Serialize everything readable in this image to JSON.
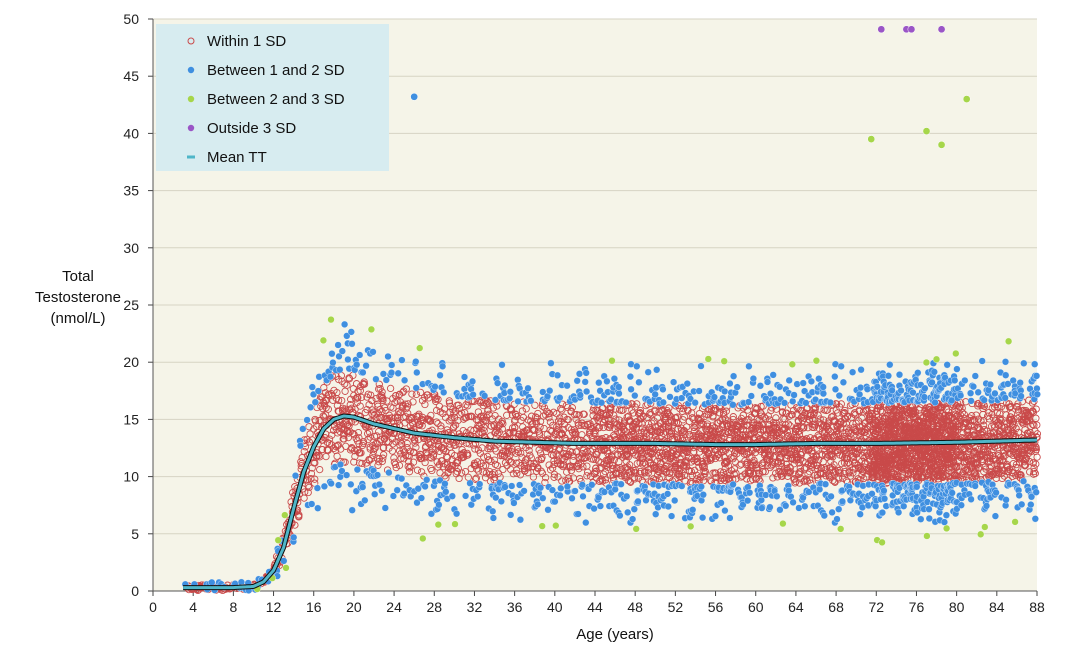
{
  "chart_data": {
    "type": "scatter",
    "title": "",
    "xlabel": "Age (years)",
    "ylabel_lines": [
      "Total",
      "Testosterone",
      "(nmol/L)"
    ],
    "xlim": [
      0,
      88
    ],
    "ylim": [
      0,
      50
    ],
    "x_ticks": [
      "0",
      "4",
      "8",
      "12",
      "16",
      "20",
      "24",
      "28",
      "32",
      "36",
      "40",
      "44",
      "48",
      "52",
      "56",
      "60",
      "64",
      "68",
      "72",
      "76",
      "80",
      "84",
      "88"
    ],
    "y_ticks": [
      "0",
      "5",
      "10",
      "15",
      "20",
      "25",
      "30",
      "35",
      "40",
      "45",
      "50"
    ],
    "grid": "horizontal",
    "legend_position": "top-left",
    "series": [
      {
        "name": "Within 1 SD",
        "marker": "open-circle",
        "color": "#c94a4a"
      },
      {
        "name": "Between 1 and 2 SD",
        "marker": "filled-circle",
        "color": "#3f8fe0"
      },
      {
        "name": "Between 2 and 3 SD",
        "marker": "filled-circle",
        "color": "#a6d64a"
      },
      {
        "name": "Outside 3 SD",
        "marker": "filled-circle",
        "color": "#9a55c6"
      },
      {
        "name": "Mean TT",
        "marker": "line",
        "color": "#4fb6c8"
      }
    ],
    "mean_tt": {
      "x": [
        3,
        4,
        6,
        8,
        10,
        11,
        12,
        13,
        14,
        15,
        16,
        17,
        18,
        19,
        20,
        22,
        24,
        26,
        28,
        30,
        34,
        38,
        42,
        46,
        50,
        56,
        60,
        66,
        72,
        80,
        88
      ],
      "y": [
        0.3,
        0.3,
        0.3,
        0.3,
        0.4,
        0.8,
        1.8,
        3.8,
        7.2,
        10.4,
        12.6,
        14.2,
        15.0,
        15.3,
        15.2,
        14.6,
        14.2,
        13.8,
        13.6,
        13.4,
        13.1,
        13.0,
        12.9,
        12.9,
        12.9,
        12.8,
        12.8,
        12.9,
        12.9,
        13.0,
        13.2
      ]
    },
    "outliers_highlighted": [
      {
        "x": 26,
        "y": 43.2,
        "series": "Between 1 and 2 SD"
      },
      {
        "x": 72.5,
        "y": 49.1,
        "series": "Outside 3 SD"
      },
      {
        "x": 75,
        "y": 49.1,
        "series": "Outside 3 SD"
      },
      {
        "x": 75.5,
        "y": 49.1,
        "series": "Outside 3 SD"
      },
      {
        "x": 78.5,
        "y": 49.1,
        "series": "Outside 3 SD"
      },
      {
        "x": 81,
        "y": 43,
        "series": "Between 2 and 3 SD"
      },
      {
        "x": 77,
        "y": 40.2,
        "series": "Between 2 and 3 SD"
      },
      {
        "x": 71.5,
        "y": 39.5,
        "series": "Between 2 and 3 SD"
      },
      {
        "x": 78.5,
        "y": 39,
        "series": "Between 2 and 3 SD"
      }
    ]
  },
  "colors": {
    "plot_background": "#f5f4e8",
    "grid": "#d6d3c3",
    "legend_background": "#d7ecf0",
    "mean_line": "#4fb6c8"
  }
}
